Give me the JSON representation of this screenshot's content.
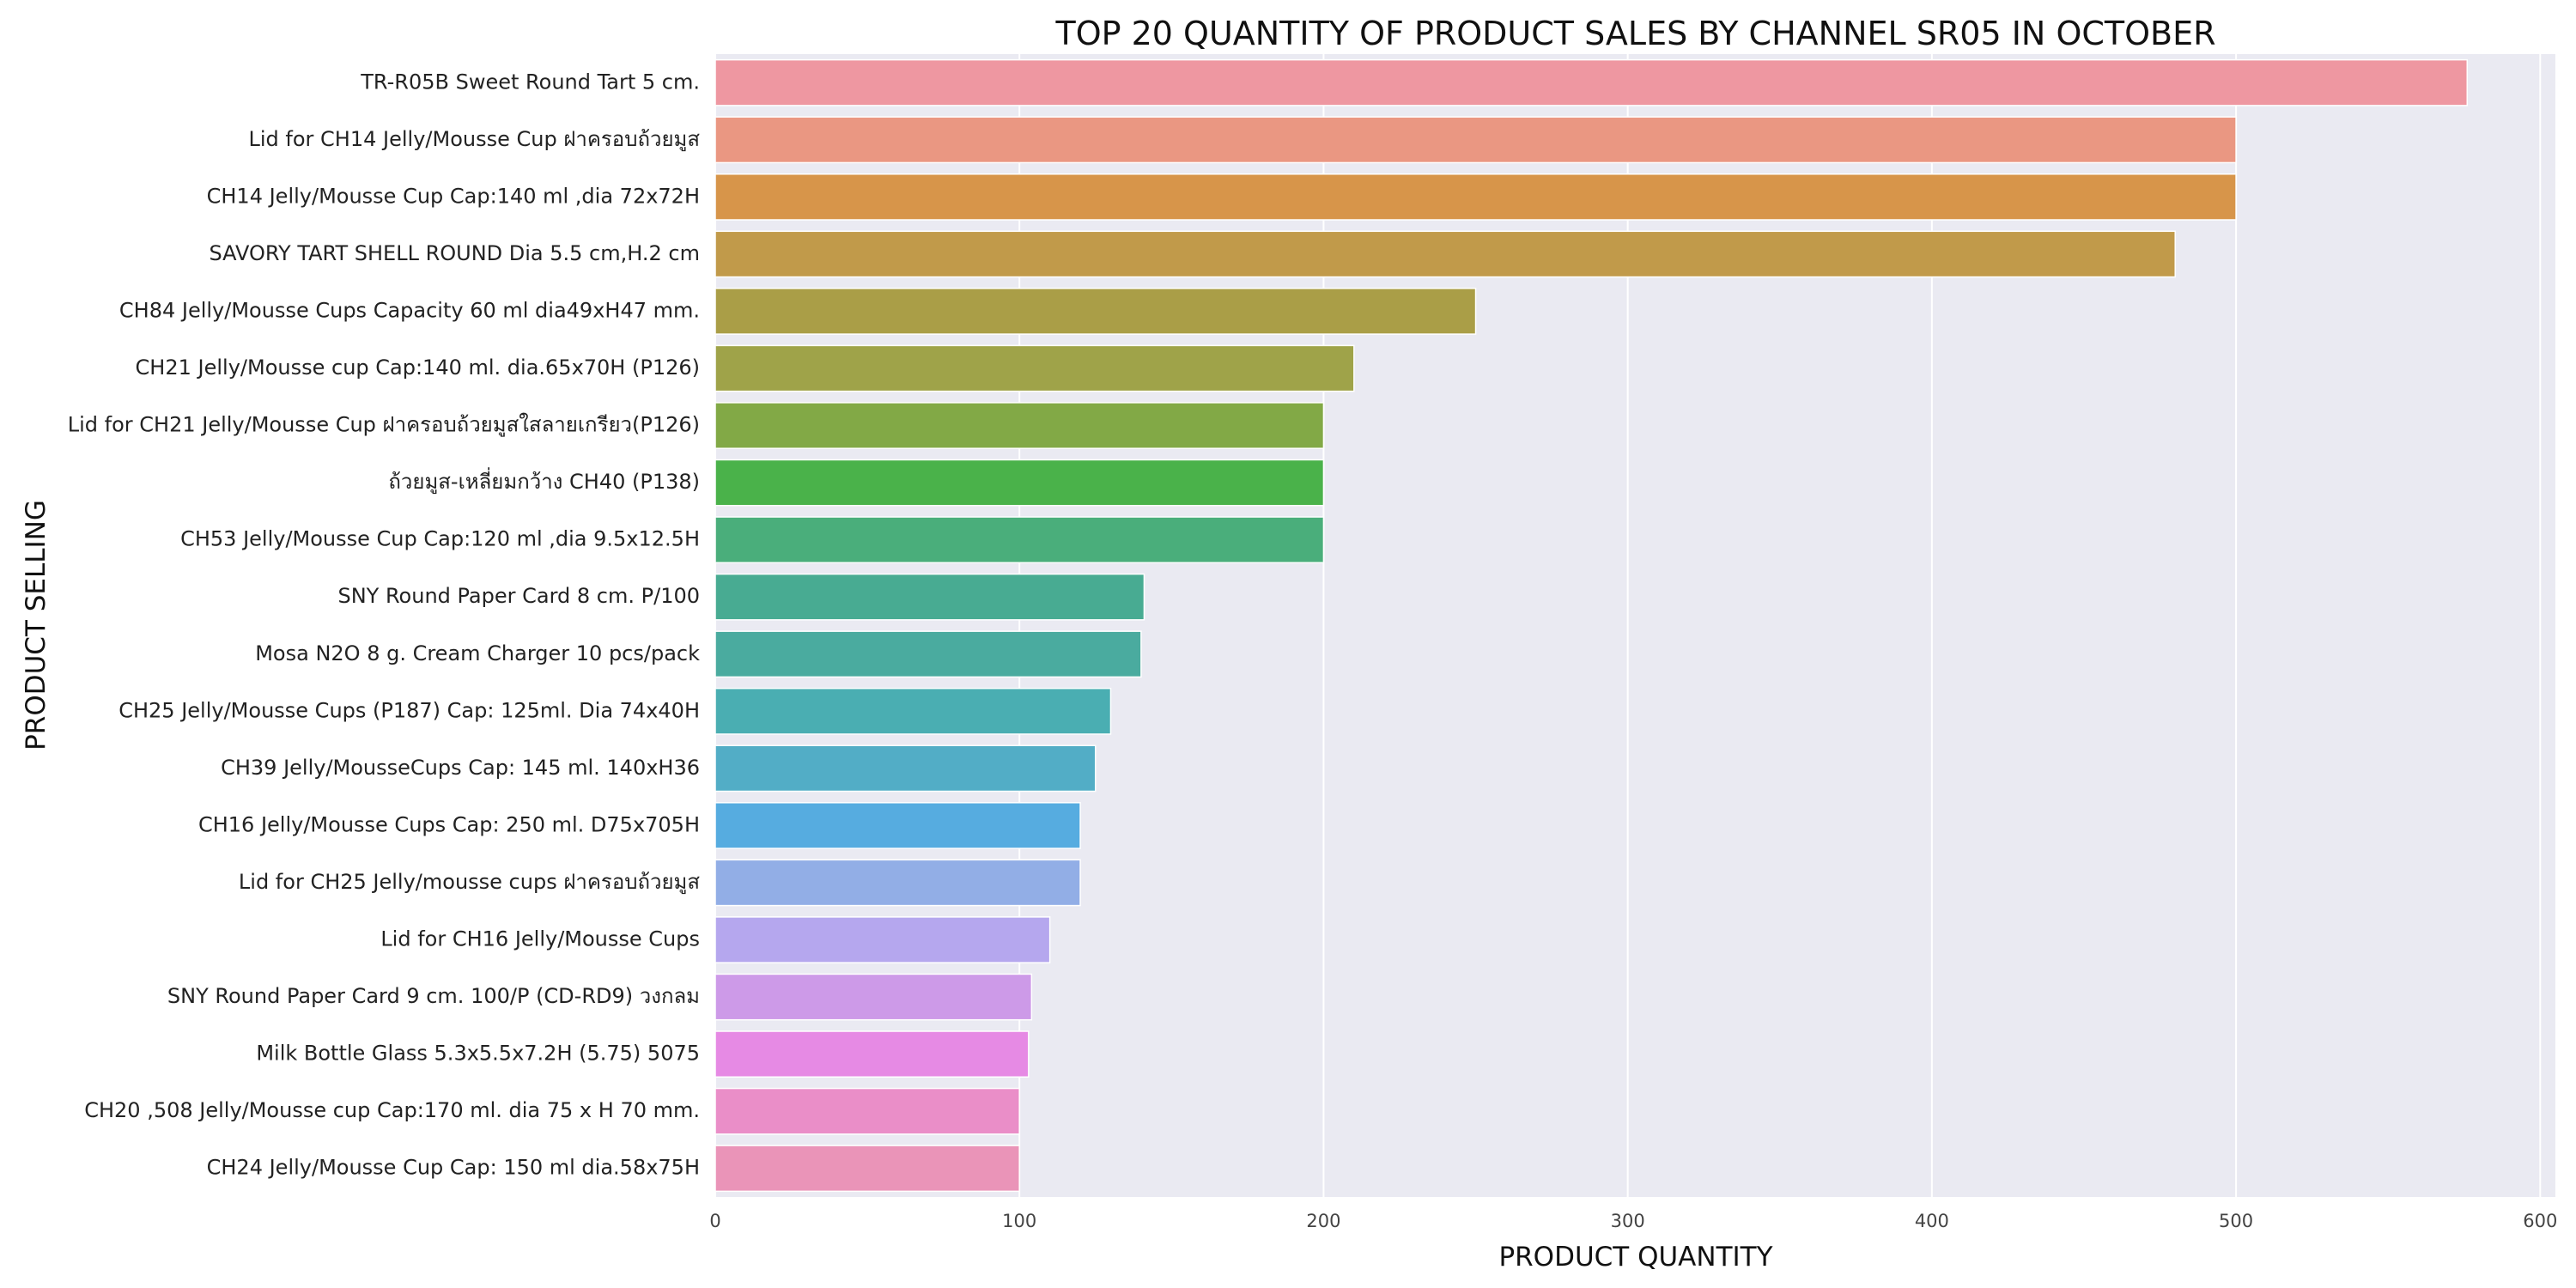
{
  "chart_data": {
    "type": "bar",
    "orientation": "horizontal",
    "title": "TOP 20 QUANTITY OF PRODUCT SALES BY CHANNEL SR05 IN OCTOBER",
    "xlabel": "PRODUCT QUANTITY",
    "ylabel": "PRODUCT SELLING",
    "xlim": [
      0,
      605
    ],
    "xticks": [
      0,
      100,
      200,
      300,
      400,
      500,
      600
    ],
    "grid": true,
    "legend": "none",
    "categories": [
      "TR-R05B Sweet Round Tart 5 cm.",
      "Lid for CH14 Jelly/Mousse Cup ฝาครอบถ้วยมูส",
      "CH14  Jelly/Mousse Cup Cap:140 ml ,dia 72x72H",
      "SAVORY TART SHELL ROUND Dia 5.5 cm,H.2 cm",
      "CH84 Jelly/Mousse Cups Capacity 60 ml dia49xH47 mm.",
      "CH21  Jelly/Mousse cup Cap:140 ml. dia.65x70H (P126)",
      "Lid for CH21 Jelly/Mousse Cup ฝาครอบถ้วยมูสใสลายเกรียว(P126)",
      "ถ้วยมูส-เหลี่ยมกว้าง CH40 (P138)",
      "CH53 Jelly/Mousse Cup Cap:120 ml ,dia 9.5x12.5H",
      "SNY Round Paper Card 8 cm. P/100",
      "Mosa N2O 8 g. Cream Charger 10 pcs/pack",
      "CH25  Jelly/Mousse Cups (P187) Cap: 125ml. Dia 74x40H",
      "CH39 Jelly/MousseCups Cap: 145 ml. 140xH36",
      "CH16 Jelly/Mousse Cups Cap: 250 ml. D75x705H",
      "Lid for CH25 Jelly/mousse cups ฝาครอบถ้วยมูส",
      "Lid for CH16 Jelly/Mousse Cups",
      "SNY Round Paper Card 9 cm. 100/P (CD-RD9) วงกลม",
      "Milk Bottle Glass 5.3x5.5x7.2H (5.75) 5075",
      "CH20 ,508  Jelly/Mousse cup Cap:170 ml. dia 75 x H 70 mm.",
      "CH24 Jelly/Mousse Cup Cap: 150 ml dia.58x75H"
    ],
    "values": [
      576,
      500,
      500,
      480,
      250,
      210,
      200,
      200,
      200,
      141,
      140,
      130,
      125,
      120,
      120,
      110,
      104,
      103,
      100,
      100
    ],
    "colors": [
      "#ee97a1",
      "#ea9782",
      "#d7954a",
      "#c19a4a",
      "#aa9e47",
      "#9fa349",
      "#82a946",
      "#4ab24a",
      "#4aae7b",
      "#48ab92",
      "#4aab9f",
      "#4aaeb2",
      "#52adc6",
      "#56ace0",
      "#92aee6",
      "#b5a7ee",
      "#cd9ae8",
      "#e68ae4",
      "#ea8ec8",
      "#ea94b8"
    ]
  }
}
